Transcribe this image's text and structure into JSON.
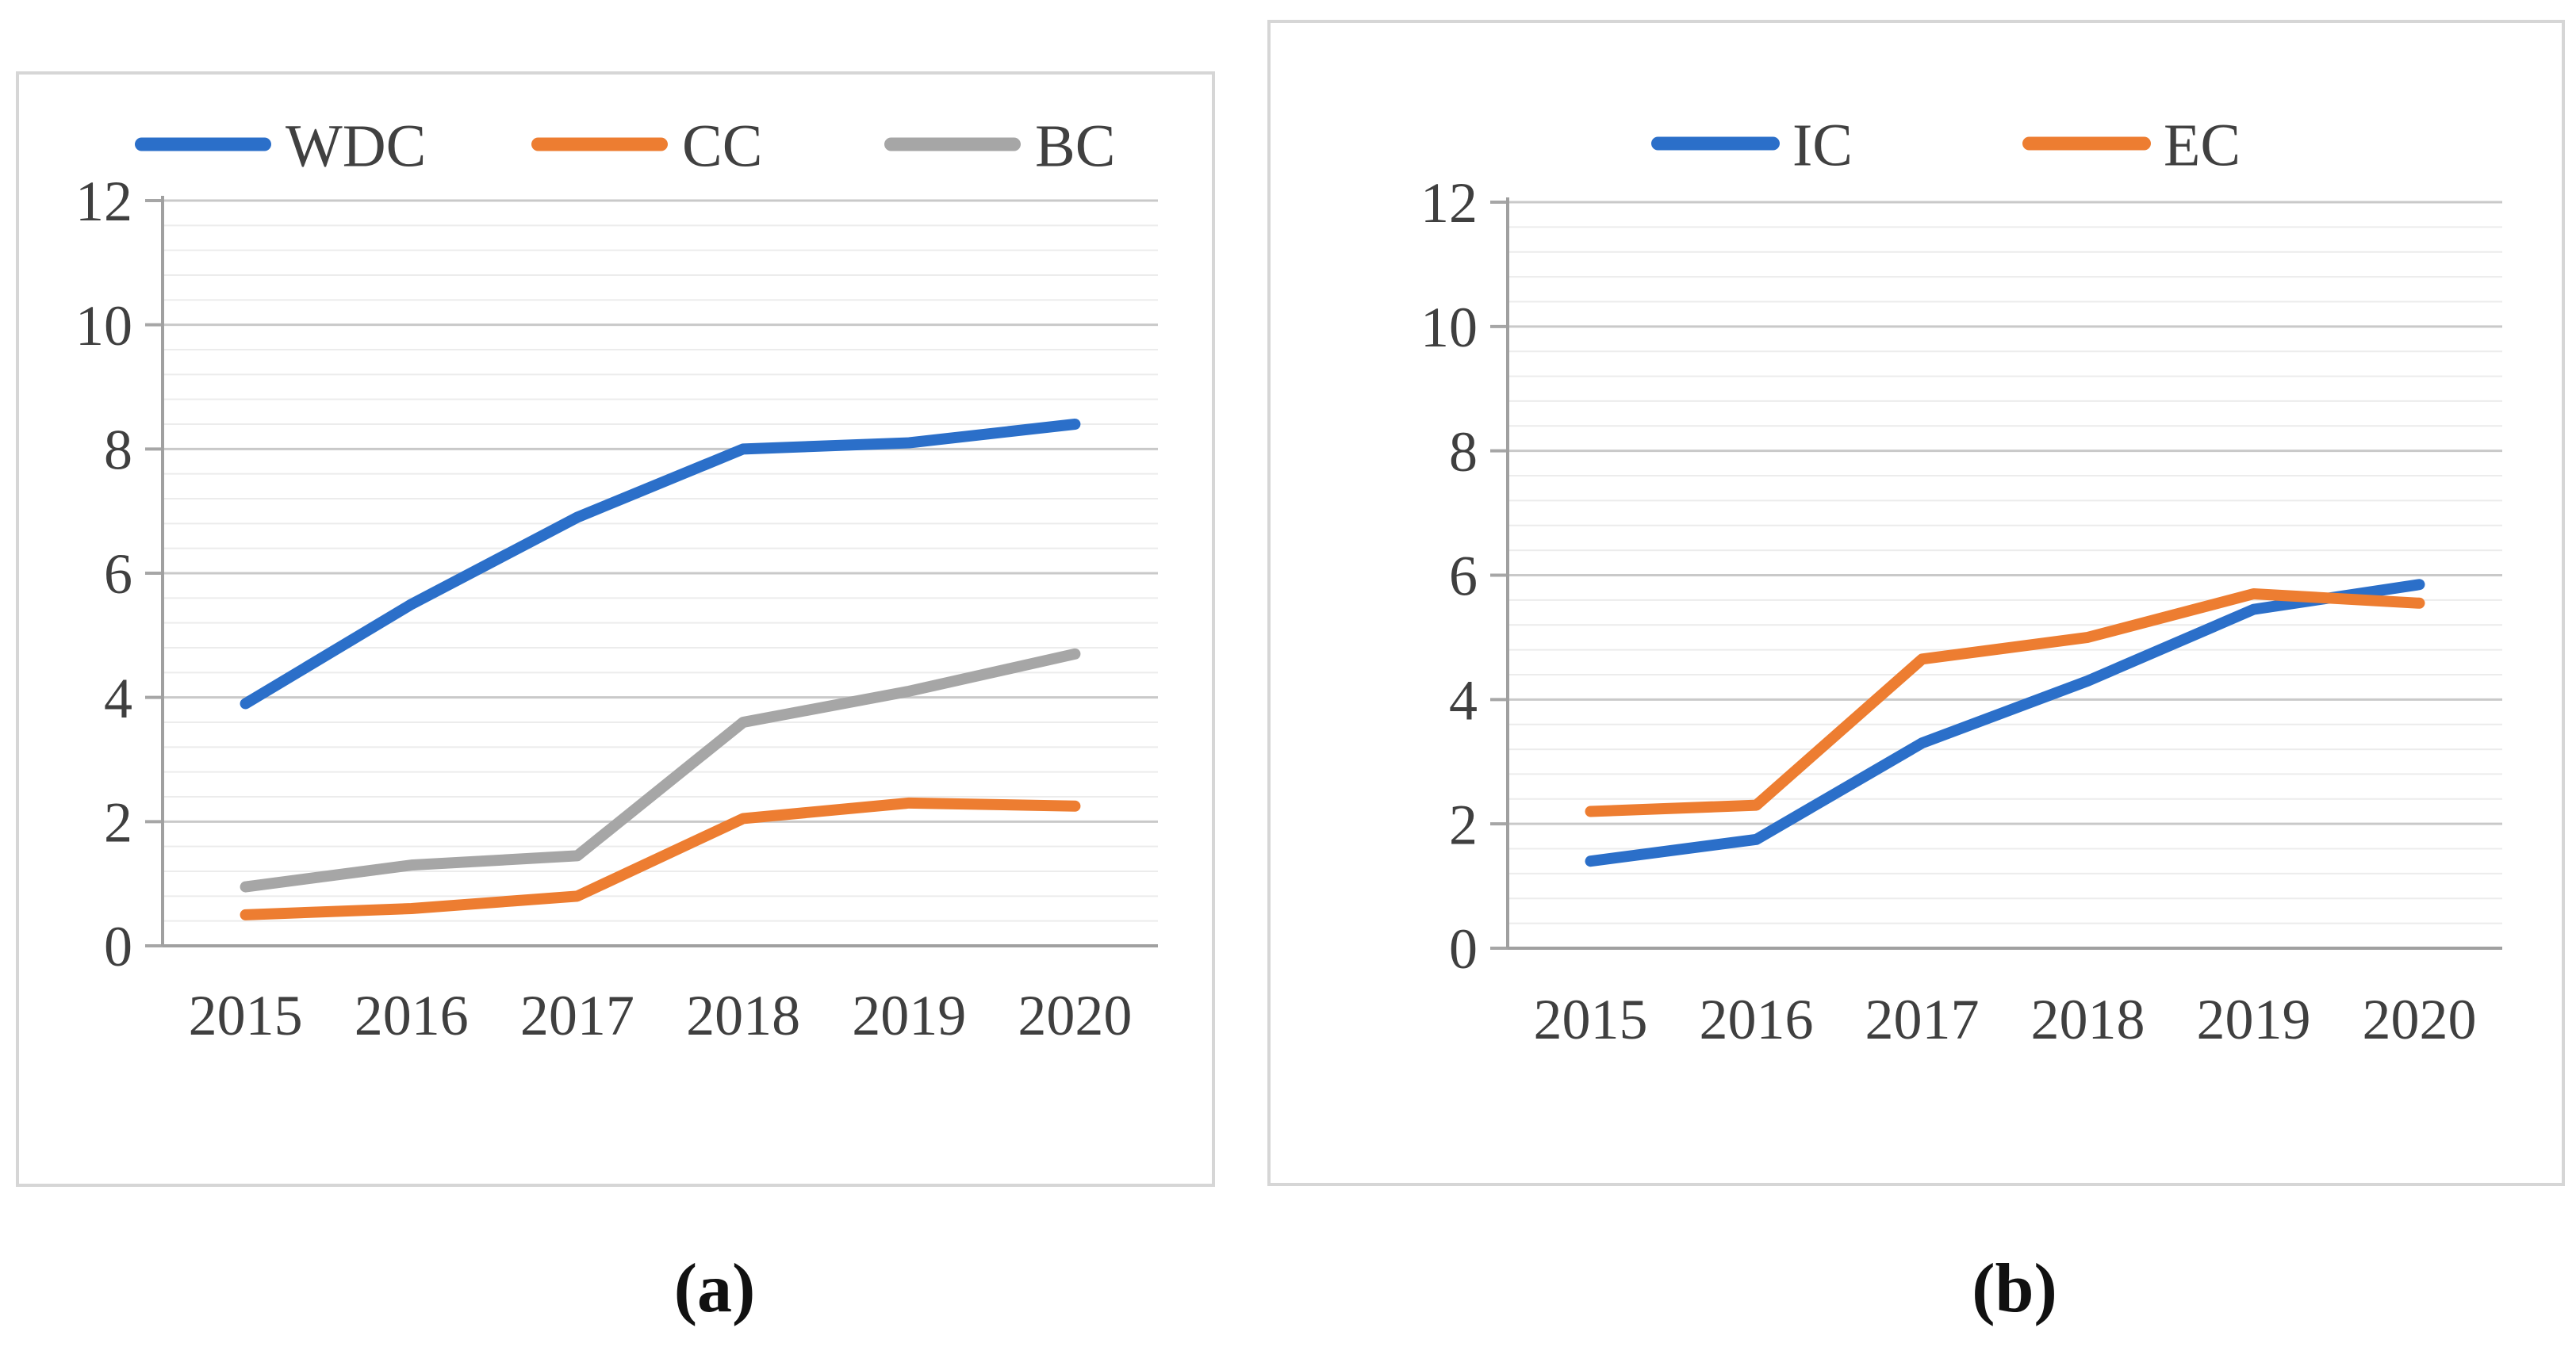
{
  "figure": {
    "caption_a": "(a)",
    "caption_b": "(b)"
  },
  "chart_data": [
    {
      "id": "a",
      "type": "line",
      "title": "",
      "xlabel": "",
      "ylabel": "",
      "categories": [
        "2015",
        "2016",
        "2017",
        "2018",
        "2019",
        "2020"
      ],
      "series": [
        {
          "name": "WDC",
          "color": "#2b6fc9",
          "values": [
            3.9,
            5.5,
            6.9,
            8.0,
            8.1,
            8.4
          ]
        },
        {
          "name": "CC",
          "color": "#ed7d31",
          "values": [
            0.5,
            0.6,
            0.8,
            2.05,
            2.3,
            2.25
          ]
        },
        {
          "name": "BC",
          "color": "#a6a6a6",
          "values": [
            0.95,
            1.3,
            1.45,
            3.6,
            4.1,
            4.7
          ]
        }
      ],
      "ylim": [
        0,
        12
      ],
      "yticks": [
        0,
        2,
        4,
        6,
        8,
        10,
        12
      ],
      "minor_unit": 0.4,
      "grid": "major-and-minor",
      "legend_position": "top"
    },
    {
      "id": "b",
      "type": "line",
      "title": "",
      "xlabel": "",
      "ylabel": "",
      "categories": [
        "2015",
        "2016",
        "2017",
        "2018",
        "2019",
        "2020"
      ],
      "series": [
        {
          "name": "IC",
          "color": "#2b6fc9",
          "values": [
            1.4,
            1.75,
            3.3,
            4.3,
            5.45,
            5.85
          ]
        },
        {
          "name": "EC",
          "color": "#ed7d31",
          "values": [
            2.2,
            2.3,
            4.65,
            5.0,
            5.7,
            5.55
          ]
        }
      ],
      "ylim": [
        0,
        12
      ],
      "yticks": [
        0,
        2,
        4,
        6,
        8,
        10,
        12
      ],
      "minor_unit": 0.4,
      "grid": "major-and-minor",
      "legend_position": "top"
    }
  ]
}
